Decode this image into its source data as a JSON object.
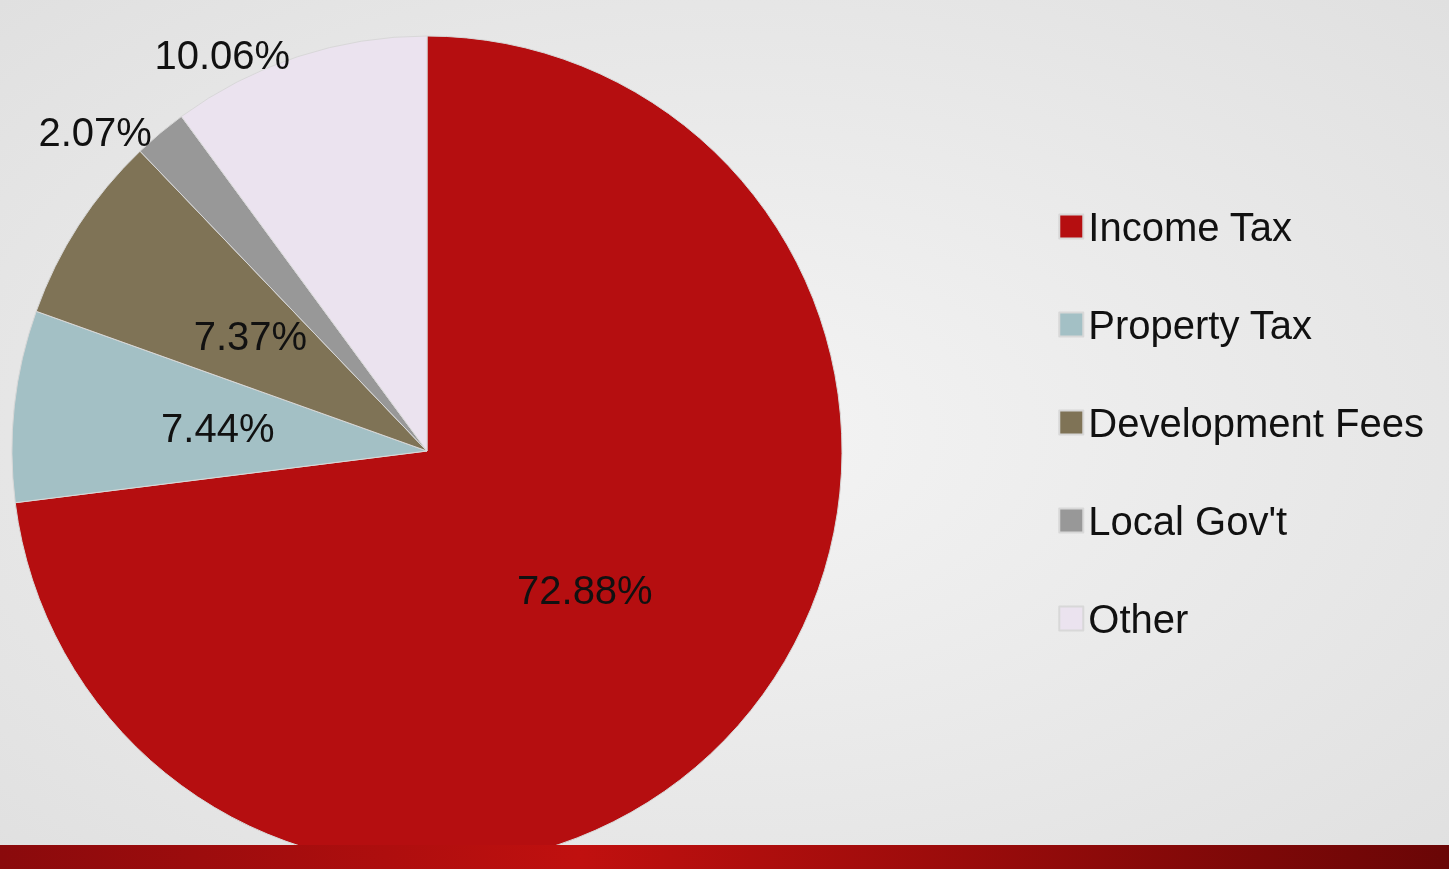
{
  "chart_data": {
    "type": "pie",
    "categories": [
      "Income Tax",
      "Property Tax",
      "Development Fees",
      "Local Gov't",
      "Other"
    ],
    "values": [
      72.88,
      7.44,
      7.37,
      2.07,
      10.06
    ],
    "value_labels": [
      "72.88%",
      "7.44%",
      "7.37%",
      "2.07%",
      "10.06%"
    ],
    "colors": [
      "#b50e10",
      "#a3c0c5",
      "#7f7356",
      "#989898",
      "#ebe3ef"
    ],
    "legend": "right"
  }
}
